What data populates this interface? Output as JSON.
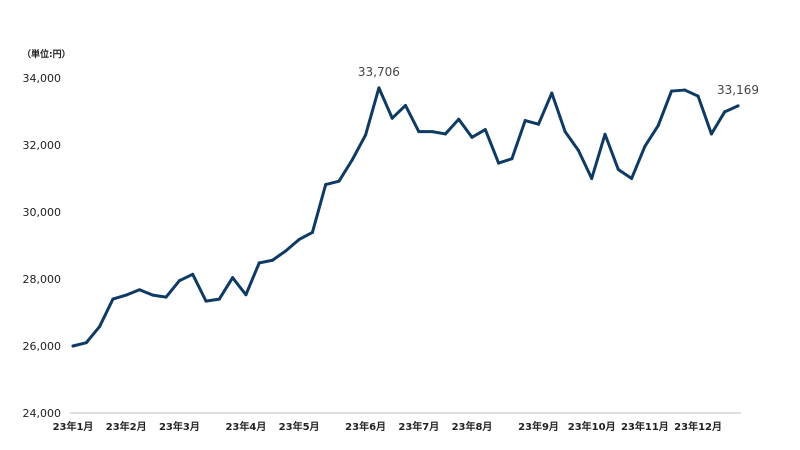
{
  "chart_data": {
    "type": "line",
    "unit_label": "（単位:円）",
    "ylim": [
      24000,
      34000
    ],
    "y_ticks": [
      {
        "value": 24000,
        "label": "24,000"
      },
      {
        "value": 26000,
        "label": "26,000"
      },
      {
        "value": 28000,
        "label": "28,000"
      },
      {
        "value": 30000,
        "label": "30,000"
      },
      {
        "value": 32000,
        "label": "32,000"
      },
      {
        "value": 34000,
        "label": "34,000"
      }
    ],
    "x_ticks": [
      {
        "index": 0,
        "label": "23年1月"
      },
      {
        "index": 4,
        "label": "23年2月"
      },
      {
        "index": 8,
        "label": "23年3月"
      },
      {
        "index": 13,
        "label": "23年4月"
      },
      {
        "index": 17,
        "label": "23年5月"
      },
      {
        "index": 22,
        "label": "23年6月"
      },
      {
        "index": 26,
        "label": "23年7月"
      },
      {
        "index": 30,
        "label": "23年8月"
      },
      {
        "index": 35,
        "label": "23年9月"
      },
      {
        "index": 39,
        "label": "23年10月"
      },
      {
        "index": 43,
        "label": "23年11月"
      },
      {
        "index": 47,
        "label": "23年12月"
      }
    ],
    "series": [
      {
        "color": "#0e3a63",
        "values": [
          26000,
          26100,
          26580,
          27400,
          27520,
          27680,
          27520,
          27460,
          27950,
          28140,
          27340,
          27400,
          28040,
          27530,
          28480,
          28560,
          28840,
          29180,
          29390,
          30820,
          30920,
          31560,
          32300,
          33706,
          32800,
          33180,
          32400,
          32400,
          32330,
          32770,
          32230,
          32460,
          31460,
          31590,
          32730,
          32620,
          33550,
          32400,
          31840,
          31000,
          32320,
          31270,
          31000,
          31960,
          32580,
          33610,
          33640,
          33460,
          32330,
          32990,
          33169
        ]
      }
    ],
    "data_labels": [
      {
        "index": 23,
        "text": "33,706"
      },
      {
        "index": 50,
        "text": "33,169"
      }
    ],
    "grid": false
  }
}
